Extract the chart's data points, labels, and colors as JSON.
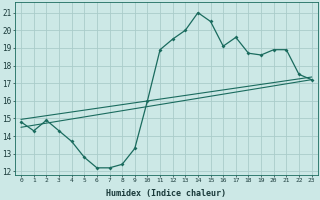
{
  "xlabel": "Humidex (Indice chaleur)",
  "bg_color": "#cce8e6",
  "grid_color": "#aaccca",
  "line_color": "#1a6b5e",
  "xlim": [
    -0.5,
    23.5
  ],
  "ylim": [
    11.8,
    21.6
  ],
  "xticks": [
    0,
    1,
    2,
    3,
    4,
    5,
    6,
    7,
    8,
    9,
    10,
    11,
    12,
    13,
    14,
    15,
    16,
    17,
    18,
    19,
    20,
    21,
    22,
    23
  ],
  "yticks": [
    12,
    13,
    14,
    15,
    16,
    17,
    18,
    19,
    20,
    21
  ],
  "line1_x": [
    0,
    1,
    2,
    3,
    4,
    5,
    6,
    7,
    8,
    9,
    10,
    11,
    12,
    13,
    14,
    15,
    16,
    17,
    18,
    19,
    20,
    21,
    22,
    23
  ],
  "line1_y": [
    14.8,
    14.3,
    14.9,
    14.3,
    13.7,
    12.8,
    12.2,
    12.2,
    12.4,
    13.3,
    16.0,
    18.9,
    19.5,
    20.0,
    21.0,
    20.5,
    19.1,
    19.6,
    18.7,
    18.6,
    18.9,
    18.9,
    17.5,
    17.2
  ],
  "line2_x": [
    0,
    23
  ],
  "line2_y": [
    14.5,
    17.2
  ],
  "line3_x": [
    0,
    23
  ],
  "line3_y": [
    14.95,
    17.35
  ]
}
